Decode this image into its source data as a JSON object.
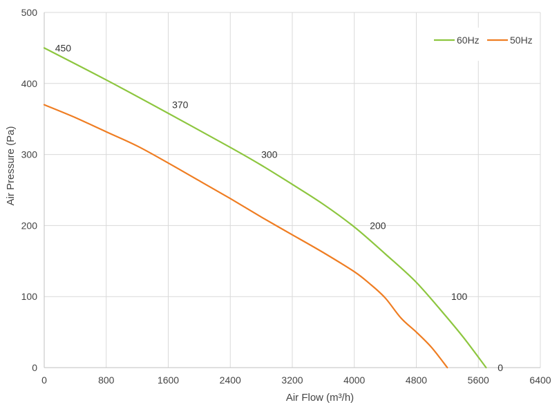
{
  "chart_data": {
    "type": "line",
    "title": "",
    "xlabel": "Air Flow  (m³/h)",
    "ylabel": "Air Pressure  (Pa)",
    "xlim": [
      0,
      6400
    ],
    "ylim": [
      0,
      500
    ],
    "xticks": [
      0,
      800,
      1600,
      2400,
      3200,
      4000,
      4800,
      5600,
      6400
    ],
    "yticks": [
      0,
      100,
      200,
      300,
      400,
      500
    ],
    "grid": true,
    "legend_position": "top-right",
    "series": [
      {
        "name": "60Hz",
        "color": "#8dc63f",
        "x": [
          0,
          800,
          1600,
          2400,
          2800,
          3200,
          3600,
          4000,
          4400,
          4800,
          5200,
          5440,
          5700
        ],
        "y": [
          450,
          405,
          358,
          310,
          285,
          258,
          230,
          198,
          160,
          120,
          70,
          38,
          0
        ]
      },
      {
        "name": "50Hz",
        "color": "#ef7d22",
        "x": [
          0,
          400,
          800,
          1200,
          1600,
          2000,
          2400,
          2800,
          3200,
          3600,
          4000,
          4200,
          4400,
          4600,
          4800,
          5000,
          5200
        ],
        "y": [
          370,
          352,
          332,
          312,
          288,
          263,
          238,
          212,
          187,
          162,
          135,
          118,
          98,
          70,
          50,
          28,
          0
        ]
      }
    ],
    "annotations": [
      {
        "text": "450",
        "x": 140,
        "y": 450
      },
      {
        "text": "370",
        "x": 1650,
        "y": 370
      },
      {
        "text": "300",
        "x": 2800,
        "y": 300
      },
      {
        "text": "200",
        "x": 4200,
        "y": 200
      },
      {
        "text": "100",
        "x": 5250,
        "y": 100
      },
      {
        "text": "0",
        "x": 5850,
        "y": 0
      }
    ]
  }
}
